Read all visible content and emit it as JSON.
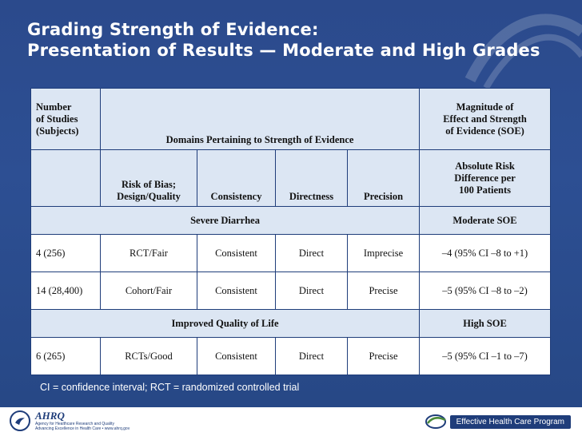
{
  "slide": {
    "title_line1": "Grading Strength of Evidence:",
    "title_line2": "Presentation of Results — Moderate and High Grades"
  },
  "table": {
    "header_row1": {
      "studies_label": [
        "Number",
        "of Studies",
        "(Subjects)"
      ],
      "domains_label": "Domains Pertaining to Strength of Evidence",
      "magnitude_label": [
        "Magnitude of",
        "Effect and Strength",
        "of Evidence (SOE)"
      ]
    },
    "header_row2": {
      "risk_of_bias": [
        "Risk of Bias;",
        "Design/Quality"
      ],
      "consistency": "Consistency",
      "directness": "Directness",
      "precision": "Precision",
      "absolute_risk": [
        "Absolute Risk",
        "Difference per",
        "100 Patients"
      ]
    },
    "sections": [
      {
        "outcome": "Severe Diarrhea",
        "grade": "Moderate SOE",
        "rows": [
          {
            "studies": "4 (256)",
            "bias": "RCT/Fair",
            "consistency": "Consistent",
            "directness": "Direct",
            "precision": "Imprecise",
            "effect": "–4 (95% CI –8 to +1)"
          },
          {
            "studies": "14 (28,400)",
            "bias": "Cohort/Fair",
            "consistency": "Consistent",
            "directness": "Direct",
            "precision": "Precise",
            "effect": "–5 (95% CI –8 to –2)"
          }
        ]
      },
      {
        "outcome": "Improved Quality of Life",
        "grade": "High SOE",
        "rows": [
          {
            "studies": "6 (265)",
            "bias": "RCTs/Good",
            "consistency": "Consistent",
            "directness": "Direct",
            "precision": "Precise",
            "effect": "–5 (95% CI –1 to –7)"
          }
        ]
      }
    ]
  },
  "footnote": "CI = confidence interval; RCT = randomized controlled trial",
  "footer": {
    "ahrq_name": "AHRQ",
    "ahrq_sub1": "Agency for Healthcare Research and Quality",
    "ahrq_sub2": "Advancing Excellence in Health Care • www.ahrq.gov",
    "ehc_label": "Effective Health Care Program"
  },
  "colors": {
    "background": "#2b4a8c",
    "header_band": "#dce6f3",
    "border": "#1f3d7a",
    "text_white": "#ffffff"
  }
}
